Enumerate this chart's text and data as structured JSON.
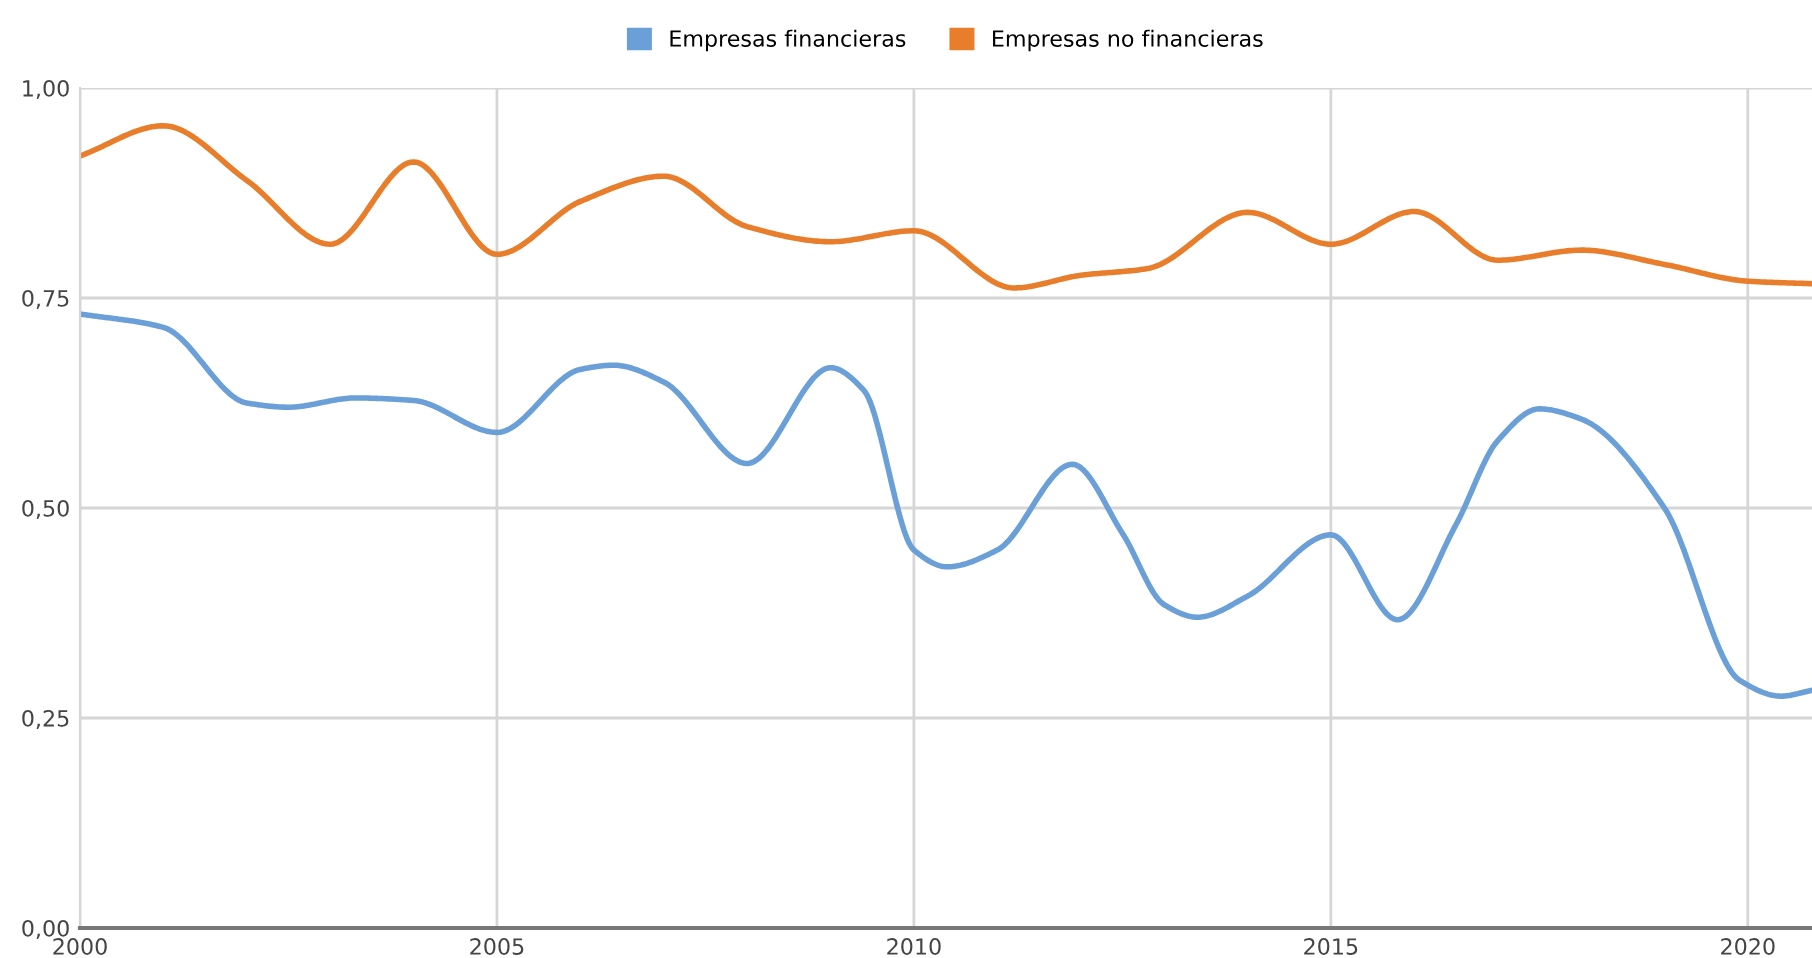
{
  "chart_data": {
    "type": "line",
    "series": [
      {
        "name": "Empresas financieras",
        "color": "#6a9fd8",
        "x": [
          2000,
          2001,
          2002,
          2002.5,
          2003.3,
          2004,
          2005,
          2006,
          2006.4,
          2007,
          2008,
          2009,
          2009.4,
          2010,
          2010.4,
          2011,
          2011.9,
          2012.5,
          2013,
          2013.4,
          2014,
          2015,
          2015.8,
          2016.5,
          2017,
          2017.5,
          2018,
          2019,
          2019.9,
          2020.4,
          2020.77
        ],
        "values": [
          0.731,
          0.715,
          0.625,
          0.62,
          0.631,
          0.628,
          0.59,
          0.665,
          0.67,
          0.65,
          0.553,
          0.667,
          0.64,
          0.45,
          0.43,
          0.45,
          0.552,
          0.47,
          0.385,
          0.37,
          0.395,
          0.468,
          0.367,
          0.48,
          0.58,
          0.618,
          0.606,
          0.5,
          0.295,
          0.276,
          0.283
        ]
      },
      {
        "name": "Empresas no financieras",
        "color": "#e87e2c",
        "x": [
          2000,
          2001,
          2002,
          2003,
          2004,
          2005,
          2006,
          2007,
          2008,
          2009,
          2010,
          2011.2,
          2012,
          2012.8,
          2014,
          2015,
          2016,
          2017,
          2018,
          2019,
          2020,
          2020.77
        ],
        "values": [
          0.919,
          0.955,
          0.89,
          0.814,
          0.912,
          0.802,
          0.865,
          0.895,
          0.835,
          0.817,
          0.83,
          0.762,
          0.777,
          0.785,
          0.852,
          0.814,
          0.853,
          0.795,
          0.807,
          0.79,
          0.77,
          0.767
        ]
      }
    ],
    "xlim": [
      2000,
      2020.77
    ],
    "xticks": [
      2000,
      2005,
      2010,
      2015,
      2020
    ],
    "ylim": [
      0,
      1
    ],
    "yticks": [
      {
        "value": 0,
        "label": "0,00"
      },
      {
        "value": 0.25,
        "label": "0,25"
      },
      {
        "value": 0.5,
        "label": "0,50"
      },
      {
        "value": 0.75,
        "label": "0,75"
      },
      {
        "value": 1,
        "label": "1,00"
      }
    ],
    "grid": true,
    "legend": "top",
    "line_style": "solid",
    "marker": "none"
  }
}
